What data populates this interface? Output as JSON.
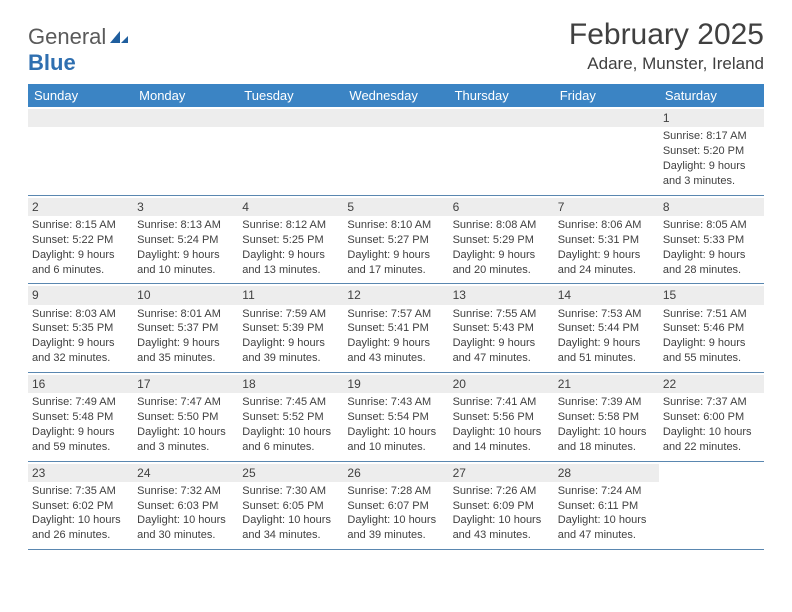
{
  "logo": {
    "word1": "General",
    "word2": "Blue"
  },
  "title": "February 2025",
  "location": "Adare, Munster, Ireland",
  "colors": {
    "header_bg": "#3b84c4",
    "header_text": "#ffffff",
    "daynum_bg": "#ededed",
    "row_border": "#5a87b0",
    "text": "#404040",
    "logo_gray": "#5a5a5a",
    "logo_blue": "#2f6fb0"
  },
  "weekdays": [
    "Sunday",
    "Monday",
    "Tuesday",
    "Wednesday",
    "Thursday",
    "Friday",
    "Saturday"
  ],
  "weeks": [
    [
      null,
      null,
      null,
      null,
      null,
      null,
      {
        "n": "1",
        "sr": "Sunrise: 8:17 AM",
        "ss": "Sunset: 5:20 PM",
        "d1": "Daylight: 9 hours",
        "d2": "and 3 minutes."
      }
    ],
    [
      {
        "n": "2",
        "sr": "Sunrise: 8:15 AM",
        "ss": "Sunset: 5:22 PM",
        "d1": "Daylight: 9 hours",
        "d2": "and 6 minutes."
      },
      {
        "n": "3",
        "sr": "Sunrise: 8:13 AM",
        "ss": "Sunset: 5:24 PM",
        "d1": "Daylight: 9 hours",
        "d2": "and 10 minutes."
      },
      {
        "n": "4",
        "sr": "Sunrise: 8:12 AM",
        "ss": "Sunset: 5:25 PM",
        "d1": "Daylight: 9 hours",
        "d2": "and 13 minutes."
      },
      {
        "n": "5",
        "sr": "Sunrise: 8:10 AM",
        "ss": "Sunset: 5:27 PM",
        "d1": "Daylight: 9 hours",
        "d2": "and 17 minutes."
      },
      {
        "n": "6",
        "sr": "Sunrise: 8:08 AM",
        "ss": "Sunset: 5:29 PM",
        "d1": "Daylight: 9 hours",
        "d2": "and 20 minutes."
      },
      {
        "n": "7",
        "sr": "Sunrise: 8:06 AM",
        "ss": "Sunset: 5:31 PM",
        "d1": "Daylight: 9 hours",
        "d2": "and 24 minutes."
      },
      {
        "n": "8",
        "sr": "Sunrise: 8:05 AM",
        "ss": "Sunset: 5:33 PM",
        "d1": "Daylight: 9 hours",
        "d2": "and 28 minutes."
      }
    ],
    [
      {
        "n": "9",
        "sr": "Sunrise: 8:03 AM",
        "ss": "Sunset: 5:35 PM",
        "d1": "Daylight: 9 hours",
        "d2": "and 32 minutes."
      },
      {
        "n": "10",
        "sr": "Sunrise: 8:01 AM",
        "ss": "Sunset: 5:37 PM",
        "d1": "Daylight: 9 hours",
        "d2": "and 35 minutes."
      },
      {
        "n": "11",
        "sr": "Sunrise: 7:59 AM",
        "ss": "Sunset: 5:39 PM",
        "d1": "Daylight: 9 hours",
        "d2": "and 39 minutes."
      },
      {
        "n": "12",
        "sr": "Sunrise: 7:57 AM",
        "ss": "Sunset: 5:41 PM",
        "d1": "Daylight: 9 hours",
        "d2": "and 43 minutes."
      },
      {
        "n": "13",
        "sr": "Sunrise: 7:55 AM",
        "ss": "Sunset: 5:43 PM",
        "d1": "Daylight: 9 hours",
        "d2": "and 47 minutes."
      },
      {
        "n": "14",
        "sr": "Sunrise: 7:53 AM",
        "ss": "Sunset: 5:44 PM",
        "d1": "Daylight: 9 hours",
        "d2": "and 51 minutes."
      },
      {
        "n": "15",
        "sr": "Sunrise: 7:51 AM",
        "ss": "Sunset: 5:46 PM",
        "d1": "Daylight: 9 hours",
        "d2": "and 55 minutes."
      }
    ],
    [
      {
        "n": "16",
        "sr": "Sunrise: 7:49 AM",
        "ss": "Sunset: 5:48 PM",
        "d1": "Daylight: 9 hours",
        "d2": "and 59 minutes."
      },
      {
        "n": "17",
        "sr": "Sunrise: 7:47 AM",
        "ss": "Sunset: 5:50 PM",
        "d1": "Daylight: 10 hours",
        "d2": "and 3 minutes."
      },
      {
        "n": "18",
        "sr": "Sunrise: 7:45 AM",
        "ss": "Sunset: 5:52 PM",
        "d1": "Daylight: 10 hours",
        "d2": "and 6 minutes."
      },
      {
        "n": "19",
        "sr": "Sunrise: 7:43 AM",
        "ss": "Sunset: 5:54 PM",
        "d1": "Daylight: 10 hours",
        "d2": "and 10 minutes."
      },
      {
        "n": "20",
        "sr": "Sunrise: 7:41 AM",
        "ss": "Sunset: 5:56 PM",
        "d1": "Daylight: 10 hours",
        "d2": "and 14 minutes."
      },
      {
        "n": "21",
        "sr": "Sunrise: 7:39 AM",
        "ss": "Sunset: 5:58 PM",
        "d1": "Daylight: 10 hours",
        "d2": "and 18 minutes."
      },
      {
        "n": "22",
        "sr": "Sunrise: 7:37 AM",
        "ss": "Sunset: 6:00 PM",
        "d1": "Daylight: 10 hours",
        "d2": "and 22 minutes."
      }
    ],
    [
      {
        "n": "23",
        "sr": "Sunrise: 7:35 AM",
        "ss": "Sunset: 6:02 PM",
        "d1": "Daylight: 10 hours",
        "d2": "and 26 minutes."
      },
      {
        "n": "24",
        "sr": "Sunrise: 7:32 AM",
        "ss": "Sunset: 6:03 PM",
        "d1": "Daylight: 10 hours",
        "d2": "and 30 minutes."
      },
      {
        "n": "25",
        "sr": "Sunrise: 7:30 AM",
        "ss": "Sunset: 6:05 PM",
        "d1": "Daylight: 10 hours",
        "d2": "and 34 minutes."
      },
      {
        "n": "26",
        "sr": "Sunrise: 7:28 AM",
        "ss": "Sunset: 6:07 PM",
        "d1": "Daylight: 10 hours",
        "d2": "and 39 minutes."
      },
      {
        "n": "27",
        "sr": "Sunrise: 7:26 AM",
        "ss": "Sunset: 6:09 PM",
        "d1": "Daylight: 10 hours",
        "d2": "and 43 minutes."
      },
      {
        "n": "28",
        "sr": "Sunrise: 7:24 AM",
        "ss": "Sunset: 6:11 PM",
        "d1": "Daylight: 10 hours",
        "d2": "and 47 minutes."
      },
      null
    ]
  ]
}
